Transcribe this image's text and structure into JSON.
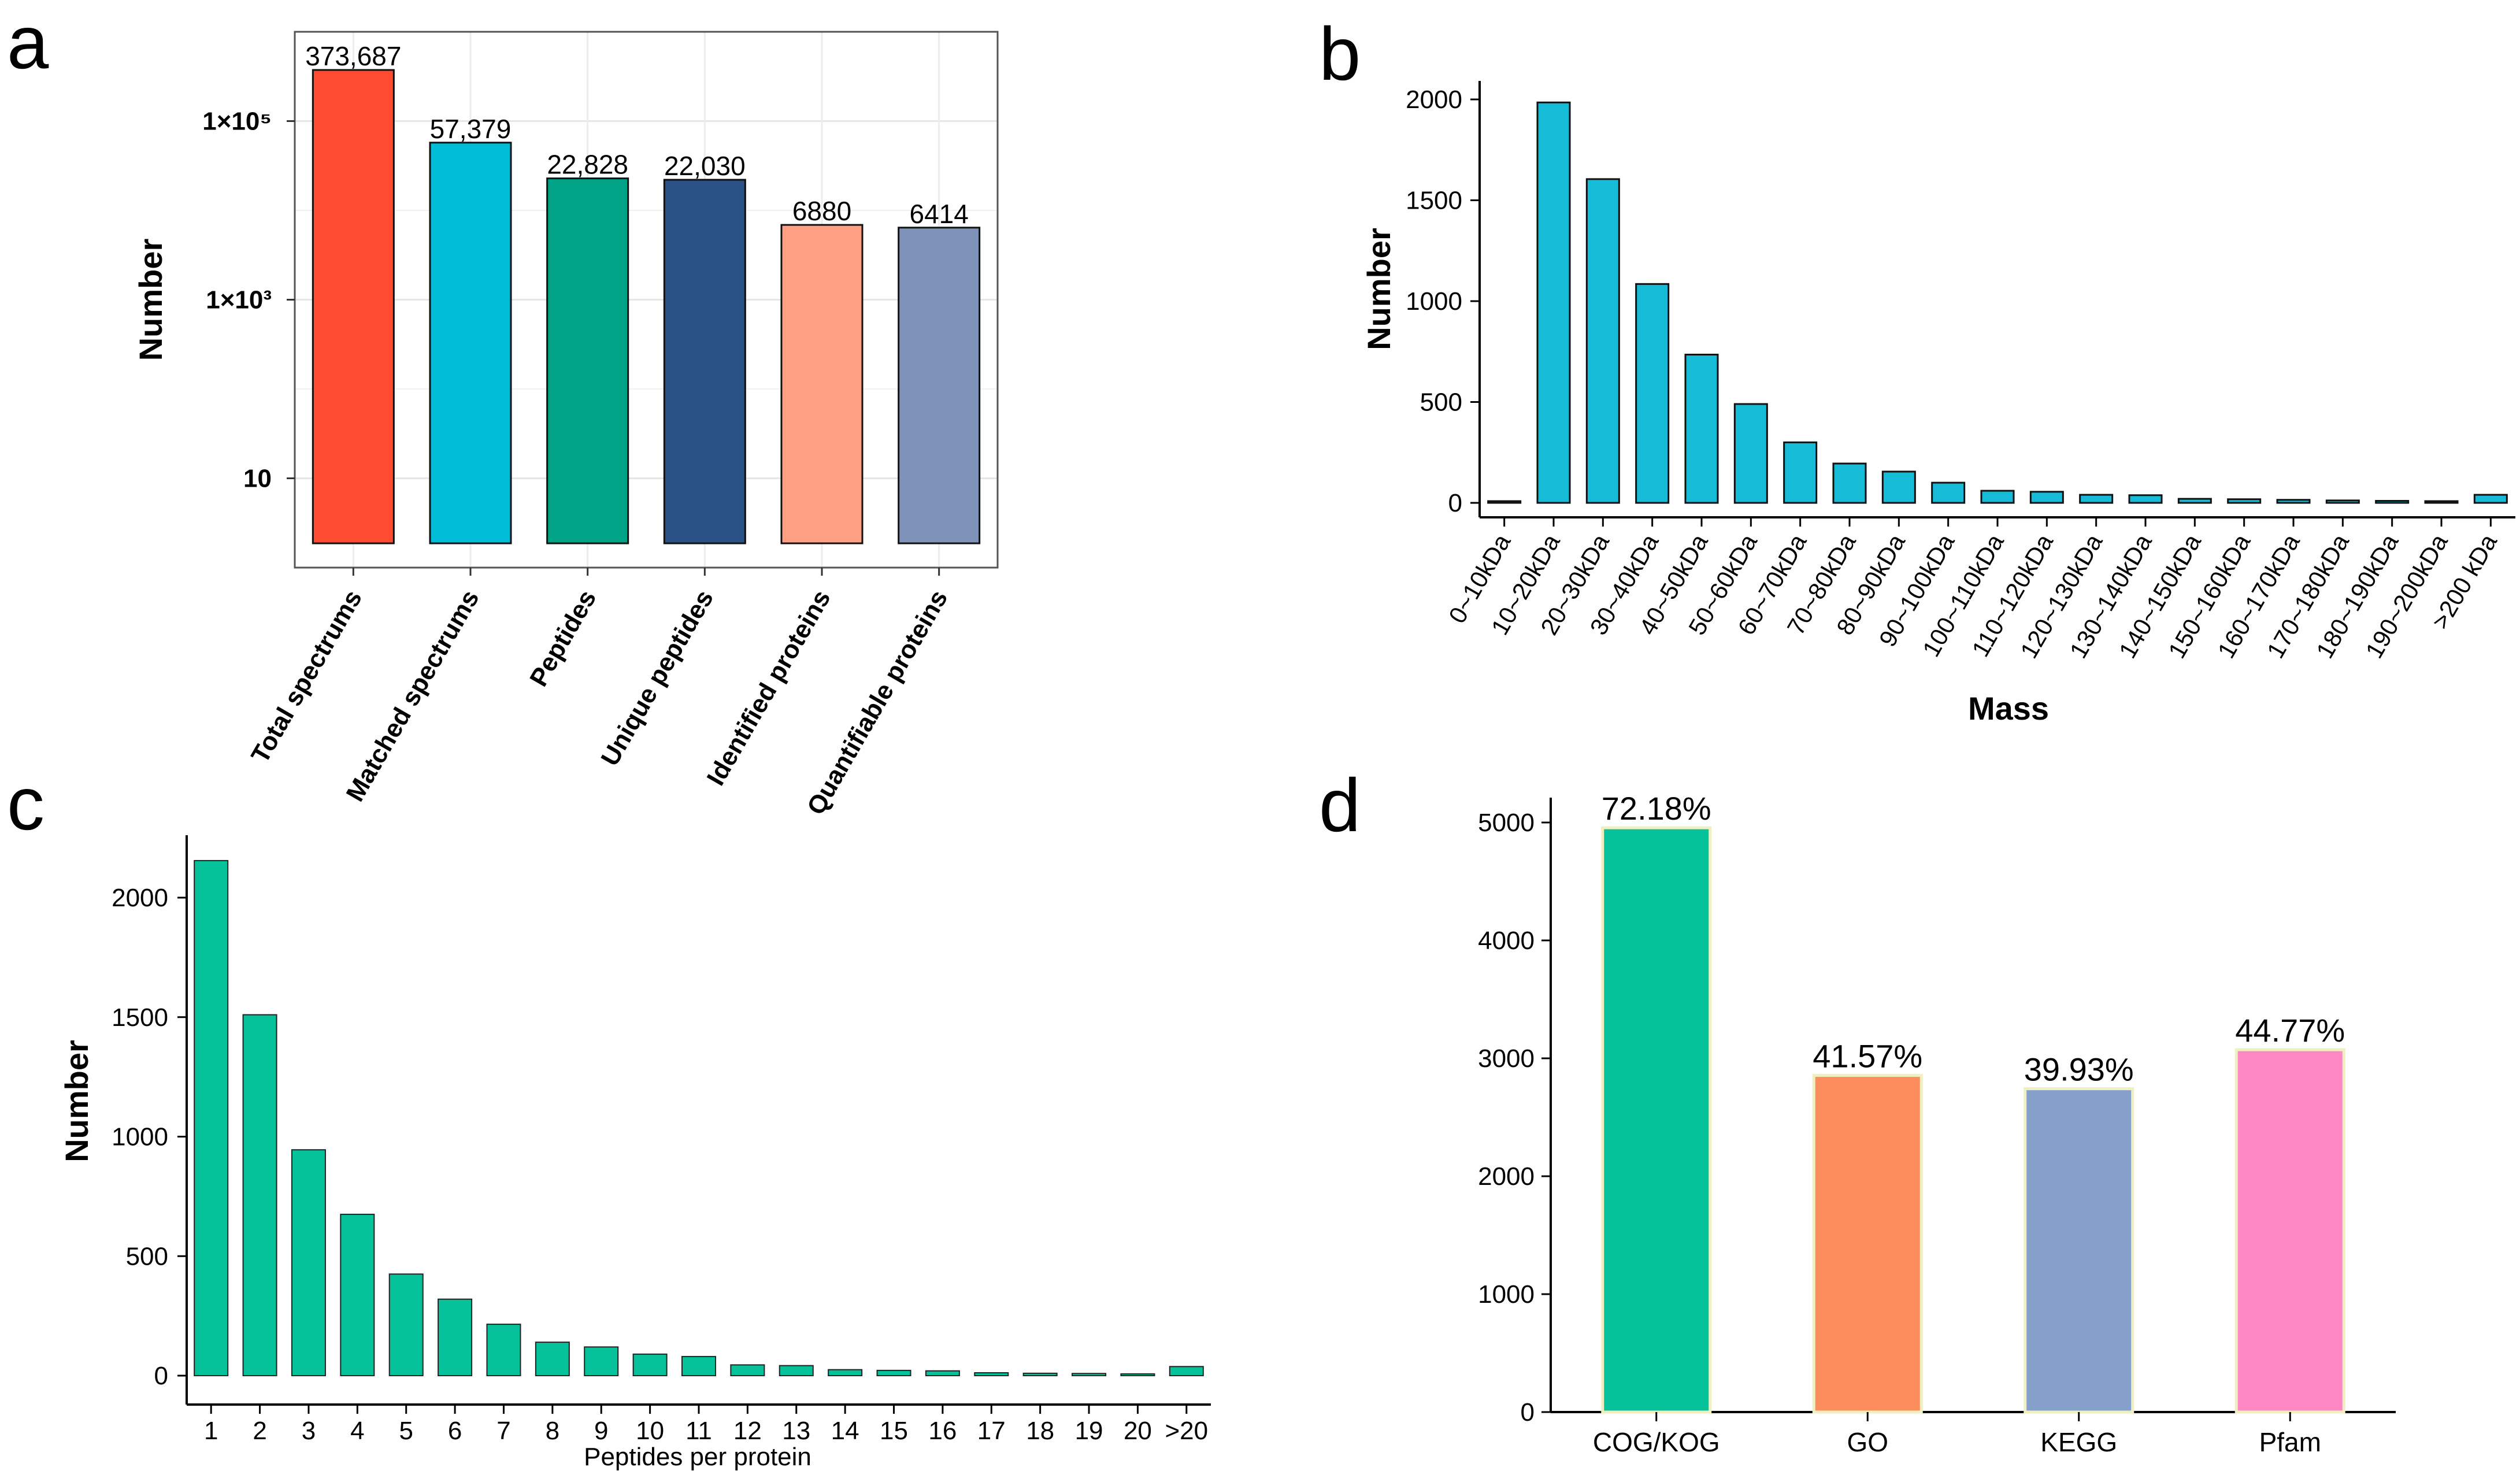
{
  "colors": {
    "a": [
      "#ff4b2f",
      "#00bcd6",
      "#00a386",
      "#2b5286",
      "#ff9f84",
      "#7e92b8"
    ],
    "b": "#16bcd7",
    "c": "#05c29b",
    "d": [
      "#05c29b",
      "#fc8c5c",
      "#85a0ca",
      "#fd88c3"
    ],
    "d_edge": "#f0efc2"
  },
  "chart_data": [
    {
      "panel": "a",
      "type": "bar",
      "yscale": "log",
      "ylabel": "Number",
      "ylim": [
        1,
        1000000
      ],
      "yticks": [
        10,
        1000,
        100000
      ],
      "ytick_labels": [
        "10",
        "1×10³",
        "1×10⁵"
      ],
      "grid": true,
      "categories": [
        "Total spectrums",
        "Matched spectrums",
        "Peptides",
        "Unique peptides",
        "Identified proteins",
        "Quantifiable proteins"
      ],
      "values": [
        373687,
        57379,
        22828,
        22030,
        6880,
        6414
      ],
      "value_labels": [
        "373,687",
        "57,379",
        "22,828",
        "22,030",
        "6880",
        "6414"
      ]
    },
    {
      "panel": "b",
      "type": "bar",
      "xlabel": "Mass",
      "ylabel": "Number",
      "ylim": [
        -80,
        2080
      ],
      "yticks": [
        0,
        500,
        1000,
        1500,
        2000
      ],
      "ytick_labels": [
        "0",
        "500",
        "1000",
        "1500",
        "2000"
      ],
      "categories": [
        "0~10kDa",
        "10~20kDa",
        "20~30kDa",
        "30~40kDa",
        "40~50kDa",
        "50~60kDa",
        "60~70kDa",
        "70~80kDa",
        "80~90kDa",
        "90~100kDa",
        "100~110kDa",
        "110~120kDa",
        "120~130kDa",
        "130~140kDa",
        "140~150kDa",
        "150~160kDa",
        "160~170kDa",
        "170~180kDa",
        "180~190kDa",
        "190~200kDa",
        ">200 kDa"
      ],
      "values": [
        2,
        1985,
        1605,
        1085,
        735,
        490,
        300,
        195,
        155,
        100,
        60,
        55,
        40,
        38,
        20,
        18,
        15,
        12,
        10,
        8,
        40
      ]
    },
    {
      "panel": "c",
      "type": "bar",
      "xlabel": "Peptides per protein",
      "ylabel": "Number",
      "ylim": [
        -120,
        2250
      ],
      "yticks": [
        0,
        500,
        1000,
        1500,
        2000
      ],
      "ytick_labels": [
        "0",
        "500",
        "1000",
        "1500",
        "2000"
      ],
      "categories": [
        "1",
        "2",
        "3",
        "4",
        "5",
        "6",
        "7",
        "8",
        "9",
        "10",
        "11",
        "12",
        "13",
        "14",
        "15",
        "16",
        "17",
        "18",
        "19",
        "20",
        ">20"
      ],
      "values": [
        2155,
        1510,
        945,
        675,
        425,
        320,
        215,
        140,
        120,
        90,
        80,
        45,
        42,
        25,
        22,
        20,
        12,
        10,
        9,
        3,
        38
      ]
    },
    {
      "panel": "d",
      "type": "bar",
      "ylim": [
        0,
        5200
      ],
      "yticks": [
        0,
        1000,
        2000,
        3000,
        4000,
        5000
      ],
      "ytick_labels": [
        "0",
        "1000",
        "2000",
        "3000",
        "4000",
        "5000"
      ],
      "categories": [
        "COG/KOG",
        "GO",
        "KEGG",
        "Pfam"
      ],
      "values": [
        4955,
        2855,
        2742,
        3073
      ],
      "value_labels": [
        "72.18%",
        "41.57%",
        "39.93%",
        "44.77%"
      ]
    }
  ]
}
